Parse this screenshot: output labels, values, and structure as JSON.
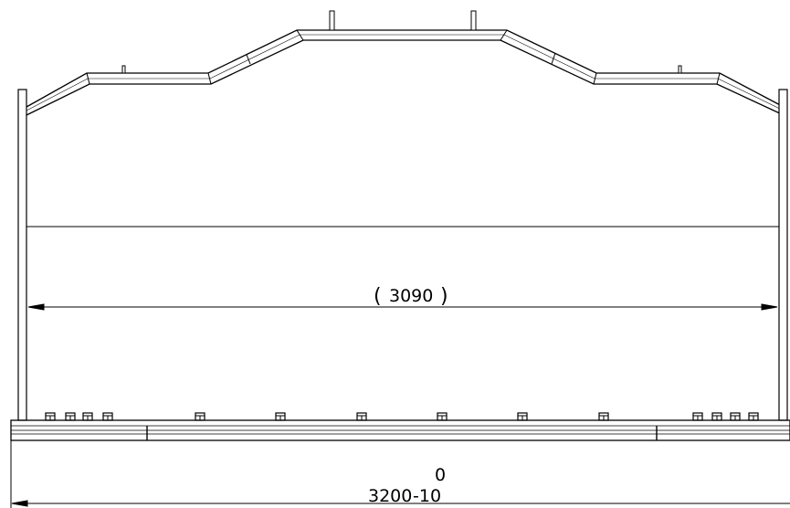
{
  "drawing": {
    "line_color": "#000000",
    "background": "#ffffff"
  },
  "dimensions": {
    "inner_width": {
      "value": "3090",
      "paren_open": "(",
      "paren_close": ")"
    },
    "overall_width": {
      "nominal": "3200",
      "upper_tolerance": "0",
      "lower_tolerance": "-10"
    }
  }
}
